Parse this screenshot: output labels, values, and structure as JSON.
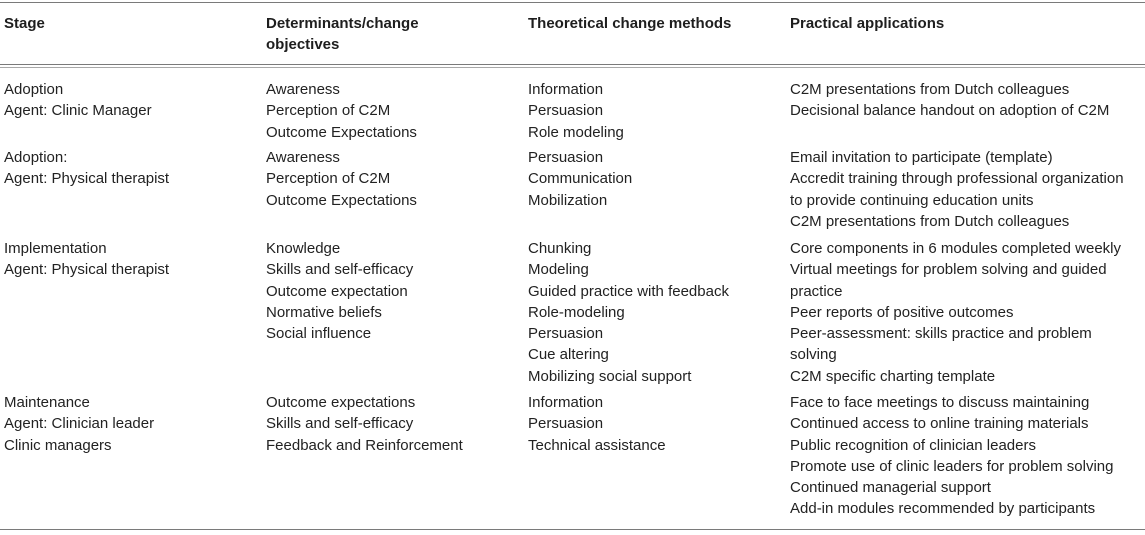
{
  "table": {
    "headers": [
      "Stage",
      "Determinants/change objectives",
      "Theoretical change methods",
      "Practical applications"
    ],
    "header_lines": [
      [
        "Stage"
      ],
      [
        "Determinants/change",
        "objectives"
      ],
      [
        "Theoretical change methods"
      ],
      [
        "Practical applications"
      ]
    ],
    "rows": [
      {
        "stage": [
          "Adoption",
          "Agent: Clinic Manager"
        ],
        "determinants": [
          "Awareness",
          "Perception of C2M",
          "Outcome Expectations"
        ],
        "methods": [
          "Information",
          "Persuasion",
          "Role modeling"
        ],
        "applications": [
          "C2M presentations from Dutch colleagues",
          "Decisional balance handout on adoption of C2M"
        ]
      },
      {
        "stage": [
          "Adoption:",
          "Agent: Physical therapist"
        ],
        "determinants": [
          "Awareness",
          "Perception of C2M",
          "Outcome Expectations"
        ],
        "methods": [
          "Persuasion",
          "Communication",
          "Mobilization"
        ],
        "applications": [
          "Email invitation to participate (template)",
          "Accredit training through professional organization",
          "to provide continuing education units",
          "C2M presentations from Dutch colleagues"
        ]
      },
      {
        "stage": [
          "Implementation",
          "Agent: Physical therapist"
        ],
        "determinants": [
          "Knowledge",
          "Skills and self-efficacy",
          "Outcome expectation",
          "Normative beliefs",
          "Social influence"
        ],
        "methods": [
          "Chunking",
          "Modeling",
          "Guided practice with feedback",
          "Role-modeling",
          "Persuasion",
          "Cue altering",
          "Mobilizing social support"
        ],
        "applications": [
          "Core components in 6 modules completed weekly",
          "Virtual meetings for problem solving and guided",
          "practice",
          "Peer reports of positive outcomes",
          "Peer-assessment: skills practice and problem",
          "solving",
          "C2M specific charting template"
        ]
      },
      {
        "stage": [
          "Maintenance",
          "Agent: Clinician leader",
          "Clinic managers"
        ],
        "determinants": [
          "Outcome expectations",
          "Skills and self-efficacy",
          "Feedback and Reinforcement"
        ],
        "methods": [
          "Information",
          "Persuasion",
          "Technical assistance"
        ],
        "applications": [
          "Face to face meetings to discuss maintaining",
          "Continued access to online training materials",
          "Public recognition of clinician leaders",
          "Promote use of clinic leaders for problem solving",
          "Continued managerial support",
          "Add-in modules recommended by participants"
        ]
      }
    ]
  }
}
